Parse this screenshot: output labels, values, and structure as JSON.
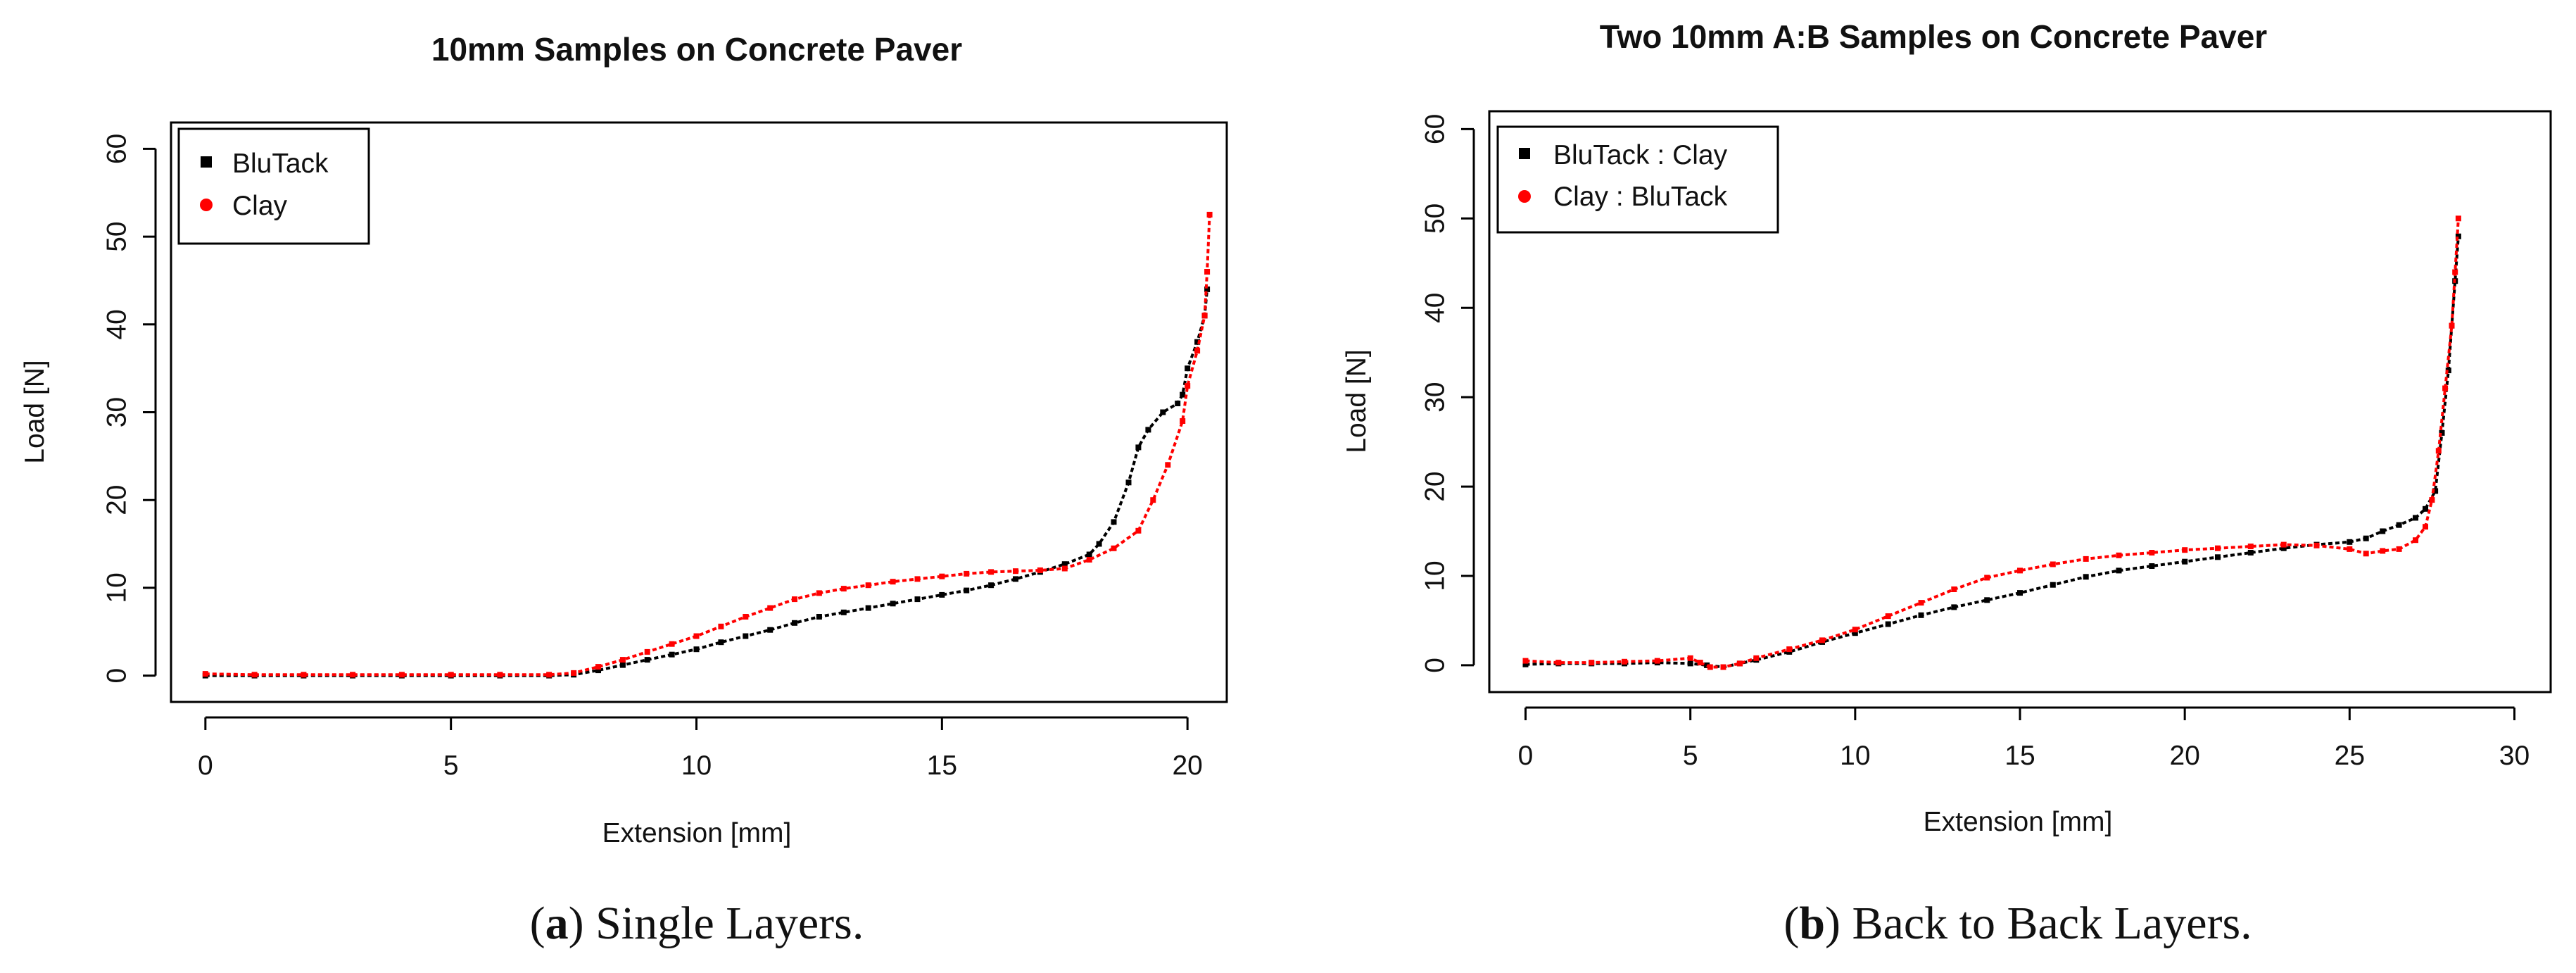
{
  "chart_data": [
    {
      "type": "line",
      "title": "10mm Samples on Concrete Paver",
      "xlabel": "Extension [mm]",
      "ylabel": "Load [N]",
      "xlim": [
        -0.7,
        20.8
      ],
      "ylim": [
        -3,
        63
      ],
      "xticks": [
        0,
        5,
        10,
        15,
        20
      ],
      "yticks": [
        0,
        10,
        20,
        30,
        40,
        50,
        60
      ],
      "legend_position": "top-left",
      "caption": {
        "label": "a",
        "text": ") Single Layers."
      },
      "series": [
        {
          "name": "BluTack",
          "color": "#000000",
          "x": [
            0,
            1,
            2,
            3,
            4,
            5,
            6,
            7,
            7.5,
            8,
            8.5,
            9,
            9.5,
            10,
            10.5,
            11,
            11.5,
            12,
            12.5,
            13,
            13.5,
            14,
            14.5,
            15,
            15.5,
            16,
            16.5,
            17,
            17.5,
            18,
            18.2,
            18.5,
            18.8,
            19,
            19.2,
            19.5,
            19.8,
            19.9,
            20,
            20.2,
            20.35,
            20.4
          ],
          "y": [
            0,
            0,
            0,
            0,
            0,
            0,
            0,
            0,
            0.1,
            0.6,
            1.2,
            1.8,
            2.4,
            3.0,
            3.8,
            4.5,
            5.2,
            6.0,
            6.7,
            7.2,
            7.7,
            8.2,
            8.7,
            9.2,
            9.7,
            10.3,
            11.0,
            11.8,
            12.7,
            13.8,
            15.0,
            17.5,
            22.0,
            26.0,
            28.0,
            30.0,
            31.0,
            32.0,
            35.0,
            38.0,
            41.0,
            44.0
          ]
        },
        {
          "name": "Clay",
          "color": "#ff0000",
          "x": [
            0,
            1,
            2,
            3,
            4,
            5,
            6,
            7,
            7.5,
            8,
            8.5,
            9,
            9.5,
            10,
            10.5,
            11,
            11.5,
            12,
            12.5,
            13,
            13.5,
            14,
            14.5,
            15,
            15.5,
            16,
            16.5,
            17,
            17.5,
            18,
            18.5,
            19,
            19.3,
            19.6,
            19.9,
            20,
            20.2,
            20.35,
            20.4,
            20.45
          ],
          "y": [
            0.2,
            0.1,
            0.1,
            0.1,
            0.1,
            0.1,
            0.1,
            0.1,
            0.3,
            1.0,
            1.8,
            2.7,
            3.6,
            4.5,
            5.6,
            6.7,
            7.7,
            8.7,
            9.4,
            9.9,
            10.3,
            10.7,
            11.0,
            11.3,
            11.6,
            11.8,
            11.9,
            12.0,
            12.2,
            13.2,
            14.5,
            16.5,
            20.0,
            24.0,
            29.0,
            33.0,
            37.0,
            41.0,
            46.0,
            52.5
          ]
        }
      ]
    },
    {
      "type": "line",
      "title": "Two 10mm A:B Samples on Concrete Paver",
      "xlabel": "Extension [mm]",
      "ylabel": "Load [N]",
      "xlim": [
        -1.1,
        31.1
      ],
      "ylim": [
        -3,
        62
      ],
      "xticks": [
        0,
        5,
        10,
        15,
        20,
        25,
        30
      ],
      "yticks": [
        0,
        10,
        20,
        30,
        40,
        50,
        60
      ],
      "legend_position": "top-left",
      "caption": {
        "label": "b",
        "text": ") Back to Back Layers."
      },
      "series": [
        {
          "name": "BluTack : Clay",
          "color": "#000000",
          "x": [
            0,
            1,
            2,
            3,
            4,
            5,
            5.5,
            6,
            6.5,
            7,
            8,
            9,
            10,
            11,
            12,
            13,
            14,
            15,
            16,
            17,
            18,
            19,
            20,
            21,
            22,
            23,
            24,
            25,
            25.5,
            26,
            26.5,
            27,
            27.3,
            27.6,
            27.8,
            28,
            28.1,
            28.2,
            28.3
          ],
          "y": [
            0.1,
            0.2,
            0.2,
            0.2,
            0.3,
            0.2,
            0,
            -0.2,
            0.2,
            0.6,
            1.5,
            2.6,
            3.6,
            4.6,
            5.6,
            6.5,
            7.3,
            8.1,
            9.0,
            9.9,
            10.6,
            11.1,
            11.6,
            12.1,
            12.6,
            13.1,
            13.5,
            13.8,
            14.2,
            15.0,
            15.7,
            16.5,
            17.5,
            19.5,
            26.0,
            33.0,
            38.0,
            43.0,
            48.0
          ]
        },
        {
          "name": "Clay : BluTack",
          "color": "#ff0000",
          "x": [
            0,
            1,
            2,
            3,
            4,
            5,
            5.3,
            5.6,
            6,
            6.5,
            7,
            8,
            9,
            10,
            11,
            12,
            13,
            14,
            15,
            16,
            17,
            18,
            19,
            20,
            21,
            22,
            23,
            24,
            25,
            25.5,
            26,
            26.5,
            27,
            27.3,
            27.5,
            27.7,
            27.9,
            28.1,
            28.2,
            28.3
          ],
          "y": [
            0.5,
            0.3,
            0.3,
            0.4,
            0.5,
            0.8,
            0.3,
            -0.2,
            -0.2,
            0.2,
            0.8,
            1.8,
            2.8,
            4.0,
            5.5,
            7.0,
            8.5,
            9.8,
            10.6,
            11.3,
            11.9,
            12.3,
            12.6,
            12.9,
            13.1,
            13.3,
            13.5,
            13.4,
            13.0,
            12.5,
            12.8,
            13.0,
            14.0,
            15.5,
            18.5,
            24.0,
            31.0,
            38.0,
            44.0,
            50.0
          ]
        }
      ]
    }
  ]
}
